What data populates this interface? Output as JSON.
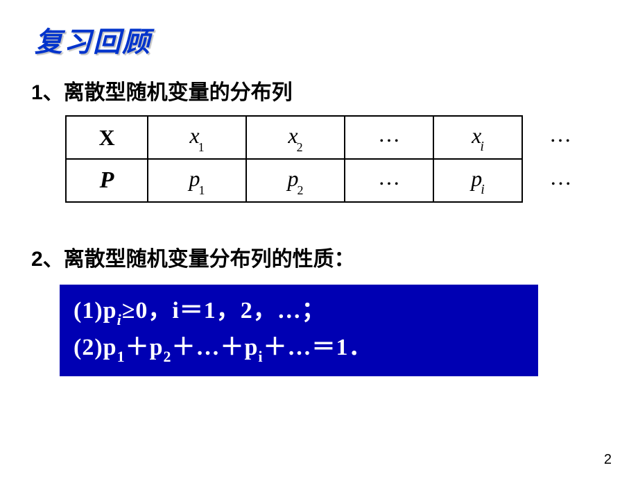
{
  "title": "复习回顾",
  "section1": {
    "heading": "1、离散型随机变量的分布列"
  },
  "table": {
    "row1": {
      "hdr": "X",
      "c1_base": "x",
      "c1_sub": "1",
      "c2_base": "x",
      "c2_sub": "2",
      "c3": "…",
      "c4_base": "x",
      "c4_sub": "i",
      "c5": "…"
    },
    "row2": {
      "hdr": "P",
      "c1_base": "p",
      "c1_sub": "1",
      "c2_base": "p",
      "c2_sub": "2",
      "c3": "…",
      "c4_base": "p",
      "c4_sub": "i",
      "c5": "…"
    }
  },
  "section2": {
    "heading": "2、离散型随机变量分布列的性质："
  },
  "props": {
    "line1_a": "(1)p",
    "line1_sub": "i",
    "line1_b": "≥0",
    "line1_c": "，",
    "line1_d": "i＝1，2，…；",
    "line2_a": "(2)p",
    "line2_s1": "1",
    "line2_plus": "＋",
    "line2_b": "p",
    "line2_s2": "2",
    "line2_c": "＋…＋p",
    "line2_s3": "i",
    "line2_d": "＋…＝1．"
  },
  "page_number": "2",
  "colors": {
    "title": "#0033cc",
    "box_bg": "#0000b3",
    "box_text": "#ffffff",
    "text": "#000000",
    "bg": "#ffffff"
  }
}
